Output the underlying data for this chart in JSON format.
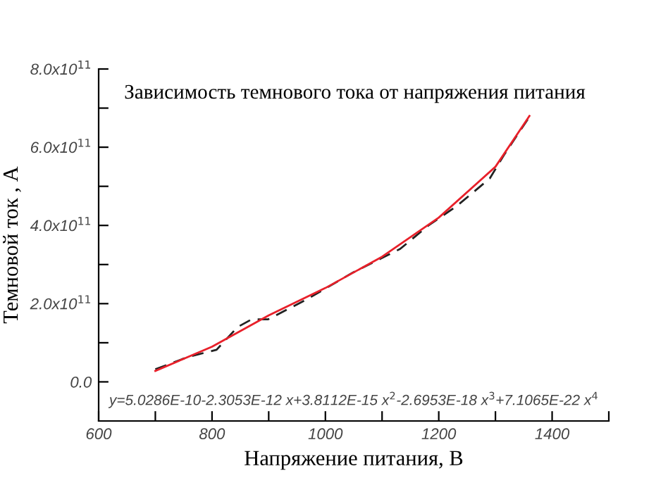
{
  "chart_data": {
    "type": "line",
    "title": "Зависимость темнового тока от напряжения питания",
    "xlabel": "Напряжение питания, В",
    "ylabel": "Темновой ток , А",
    "annotations": [
      "y=5.0286E-10-2.3053E-12 x+3.8112E-15 x$^{2}$-2.6953E-18 x$^{3}$+7.1065E-22 x$^{4}$"
    ],
    "series": [
      {
        "color": "#222222",
        "line_style": "dashed",
        "x": [
          700,
          758,
          808,
          845,
          870,
          899,
          966,
          1049,
          1132,
          1182,
          1232,
          1290,
          1315,
          1361
        ],
        "values": [
          32000000000.0,
          64000000000.0,
          82000000000.0,
          140000000000.0,
          160000000000.0,
          160000000000.0,
          210000000000.0,
          280000000000.0,
          340000000000.0,
          400000000000.0,
          450000000000.0,
          520000000000.0,
          580000000000.0,
          680000000000.0
        ]
      },
      {
        "color": "#e8202a",
        "line_style": "solid",
        "x": [
          700,
          800,
          900,
          1000,
          1100,
          1200,
          1300,
          1360
        ],
        "values": [
          28000000000.0,
          90000000000.0,
          170000000000.0,
          240000000000.0,
          320000000000.0,
          420000000000.0,
          550000000000.0,
          680000000000.0
        ]
      }
    ],
    "xlim": [
      600,
      1500
    ],
    "xticks": [
      600,
      {
        "value": 700,
        "label": null
      },
      800,
      {
        "value": 900,
        "label": null
      },
      1000,
      {
        "value": 1100,
        "label": null
      },
      1200,
      {
        "value": 1300,
        "label": null
      },
      1400,
      {
        "value": 1500,
        "label": null
      }
    ],
    "ylim": [
      -100000000000.0,
      800000000000.0
    ],
    "yticks": [
      {
        "value": 0,
        "label": "0.0"
      },
      {
        "value": 100000000000.0,
        "label": null
      },
      {
        "value": 200000000000.0,
        "label": "2.0x10$^{11}$"
      },
      {
        "value": 300000000000.0,
        "label": null
      },
      {
        "value": 400000000000.0,
        "label": "4.0x10$^{11}$"
      },
      {
        "value": 500000000000.0,
        "label": null
      },
      {
        "value": 600000000000.0,
        "label": "6.0x10$^{11}$"
      },
      {
        "value": 700000000000.0,
        "label": null
      },
      {
        "value": 800000000000.0,
        "label": "8.0x10$^{11}$"
      }
    ],
    "grid": false,
    "legend": false,
    "marker": "none"
  }
}
